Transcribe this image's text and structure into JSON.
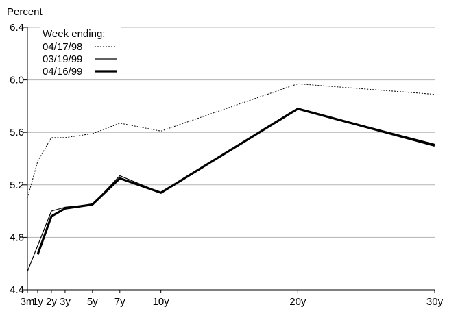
{
  "chart_data": {
    "type": "line",
    "ylabel": "Percent",
    "ylim": [
      4.4,
      6.4
    ],
    "yticks": [
      "4.4",
      "4.8",
      "5.2",
      "5.6",
      "6.0",
      "6.4"
    ],
    "x_years": [
      0.25,
      1,
      2,
      3,
      5,
      7,
      10,
      20,
      30
    ],
    "categories": [
      "3m",
      "1y",
      "2y",
      "3y",
      "5y",
      "7y",
      "10y",
      "20y",
      "30y"
    ],
    "grid": true,
    "legend": {
      "title": "Week ending:",
      "placement": "top-left"
    },
    "series": [
      {
        "name": "04/17/98",
        "style": "dotted",
        "values": [
          5.1,
          5.38,
          5.56,
          5.56,
          5.59,
          5.67,
          5.61,
          5.97,
          5.89
        ]
      },
      {
        "name": "03/19/99",
        "style": "thin",
        "values": [
          4.54,
          null,
          5.0,
          5.03,
          5.05,
          5.27,
          5.14,
          5.78,
          5.51
        ]
      },
      {
        "name": "04/16/99",
        "style": "thick",
        "values": [
          null,
          4.67,
          4.96,
          5.02,
          5.05,
          5.25,
          5.14,
          5.78,
          5.5
        ]
      }
    ]
  }
}
